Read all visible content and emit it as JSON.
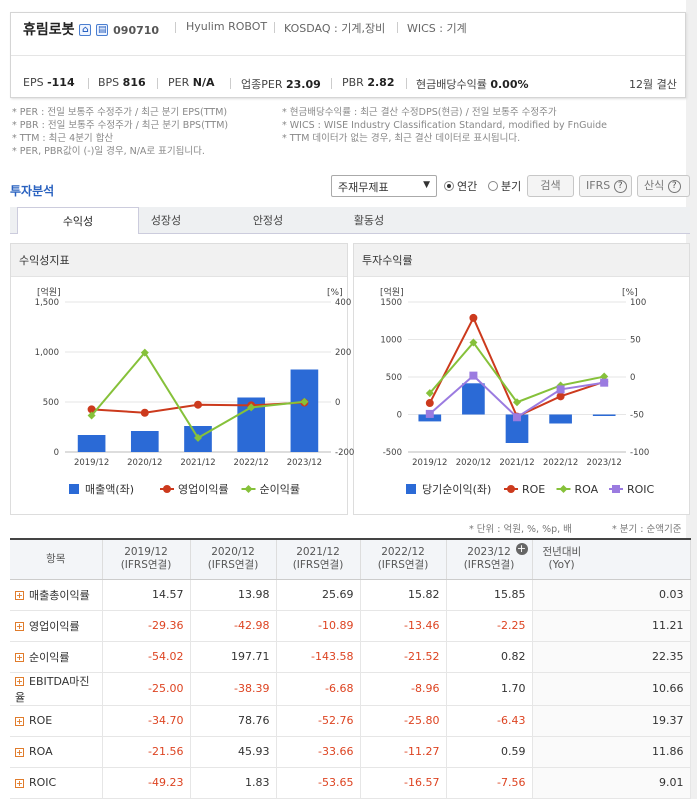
{
  "company": {
    "name": "휴림로봇",
    "code": "090710",
    "en_name": "Hyulim ROBOT",
    "market": "KOSDAQ : 기계,장비",
    "wics": "WICS : 기계",
    "icon_home": "home-icon",
    "icon_report": "report-icon"
  },
  "metrics": [
    {
      "label": "EPS",
      "value": "-114"
    },
    {
      "label": "BPS",
      "value": "816"
    },
    {
      "label": "PER",
      "value": "N/A"
    },
    {
      "label": "업종PER",
      "value": "23.09"
    },
    {
      "label": "PBR",
      "value": "2.82"
    },
    {
      "label": "현금배당수익률",
      "value": "0.00%"
    }
  ],
  "fiscal": "12월 결산",
  "notes_left": [
    "* PER : 전일 보통주 수정주가 / 최근 분기 EPS(TTM)",
    "* PBR : 전일 보통주 수정주가 / 최근 분기 BPS(TTM)",
    "* TTM : 최근 4분기 합산",
    "* PER, PBR값이 (-)일 경우, N/A로 표기됩니다."
  ],
  "notes_right": [
    "* 현금배당수익률 : 최근 결산 수정DPS(현금) / 전일 보통주 수정주가",
    "* WICS : WISE Industry Classification Standard, modified by FnGuide",
    "* TTM 데이터가 없는 경우, 최근 결산 데이터로 표시됩니다."
  ],
  "section_title": "투자분석",
  "controls": {
    "select": "주재무제표",
    "radio1": "연간",
    "radio2": "분기",
    "search": "검색",
    "ifrs": "IFRS",
    "formula": "산식",
    "help": "?"
  },
  "tabs": [
    "수익성",
    "성장성",
    "안정성",
    "활동성"
  ],
  "chart_data": [
    {
      "type": "bar",
      "title": "수익성지표",
      "left_unit": "[억원]",
      "right_unit": "[%]",
      "categories": [
        "2019/12",
        "2020/12",
        "2021/12",
        "2022/12",
        "2023/12"
      ],
      "ylim": [
        0,
        1500
      ],
      "yticks": [
        "1,500",
        "1,000",
        "500",
        "0"
      ],
      "y2lim": [
        -200,
        400
      ],
      "y2ticks": [
        "400",
        "200",
        "0",
        "-200"
      ],
      "series": [
        {
          "name": "매출액(좌)",
          "kind": "bar",
          "axis": "left",
          "color": "#2b6ad6",
          "values": [
            170,
            210,
            260,
            545,
            825
          ]
        },
        {
          "name": "영업이익률",
          "kind": "line",
          "axis": "right",
          "color": "#cc3a1d",
          "values": [
            -29.36,
            -42.98,
            -10.89,
            -13.46,
            -2.25
          ]
        },
        {
          "name": "순이익률",
          "kind": "line",
          "axis": "right",
          "color": "#86c13a",
          "values": [
            -54.02,
            197.71,
            -143.58,
            -21.52,
            0.82
          ]
        }
      ]
    },
    {
      "type": "bar",
      "title": "투자수익률",
      "left_unit": "[억원]",
      "right_unit": "[%]",
      "categories": [
        "2019/12",
        "2020/12",
        "2021/12",
        "2022/12",
        "2023/12"
      ],
      "ylim": [
        -500,
        1500
      ],
      "yticks": [
        "1500",
        "1000",
        "500",
        "0",
        "-500"
      ],
      "y2lim": [
        -100,
        100
      ],
      "y2ticks": [
        "100",
        "50",
        "0",
        "-50",
        "-100"
      ],
      "series": [
        {
          "name": "당기순이익(좌)",
          "kind": "bar",
          "axis": "left",
          "color": "#2b6ad6",
          "values": [
            -92,
            416,
            -380,
            -120,
            -20
          ]
        },
        {
          "name": "ROE",
          "kind": "line",
          "axis": "right",
          "color": "#cc3a1d",
          "values": [
            -34.7,
            78.76,
            -52.76,
            -25.8,
            -6.43
          ]
        },
        {
          "name": "ROA",
          "kind": "line",
          "axis": "right",
          "color": "#86c13a",
          "values": [
            -21.56,
            45.93,
            -33.66,
            -11.27,
            0.59
          ]
        },
        {
          "name": "ROIC",
          "kind": "line",
          "axis": "right",
          "color": "#9b7be0",
          "values": [
            -49.23,
            1.83,
            -53.65,
            -16.57,
            -7.56
          ]
        }
      ]
    }
  ],
  "unit_note": "* 단위 : 억원, %, %p, 배",
  "quarter_note": "* 분기 : 순액기준",
  "table": {
    "head_label": "항목",
    "columns": [
      [
        "2019/12",
        "(IFRS연결)"
      ],
      [
        "2020/12",
        "(IFRS연결)"
      ],
      [
        "2021/12",
        "(IFRS연결)"
      ],
      [
        "2022/12",
        "(IFRS연결)"
      ],
      [
        "2023/12",
        "(IFRS연결)"
      ],
      [
        "전년대비",
        "(YoY)"
      ]
    ],
    "rows": [
      {
        "label": "매출총이익률",
        "values": [
          "14.57",
          "13.98",
          "25.69",
          "15.82",
          "15.85",
          "0.03"
        ]
      },
      {
        "label": "영업이익률",
        "values": [
          "-29.36",
          "-42.98",
          "-10.89",
          "-13.46",
          "-2.25",
          "11.21"
        ]
      },
      {
        "label": "순이익률",
        "values": [
          "-54.02",
          "197.71",
          "-143.58",
          "-21.52",
          "0.82",
          "22.35"
        ]
      },
      {
        "label": "EBITDA마진율",
        "values": [
          "-25.00",
          "-38.39",
          "-6.68",
          "-8.96",
          "1.70",
          "10.66"
        ]
      },
      {
        "label": "ROE",
        "values": [
          "-34.70",
          "78.76",
          "-52.76",
          "-25.80",
          "-6.43",
          "19.37"
        ]
      },
      {
        "label": "ROA",
        "values": [
          "-21.56",
          "45.93",
          "-33.66",
          "-11.27",
          "0.59",
          "11.86"
        ]
      },
      {
        "label": "ROIC",
        "values": [
          "-49.23",
          "1.83",
          "-53.65",
          "-16.57",
          "-7.56",
          "9.01"
        ]
      }
    ]
  }
}
